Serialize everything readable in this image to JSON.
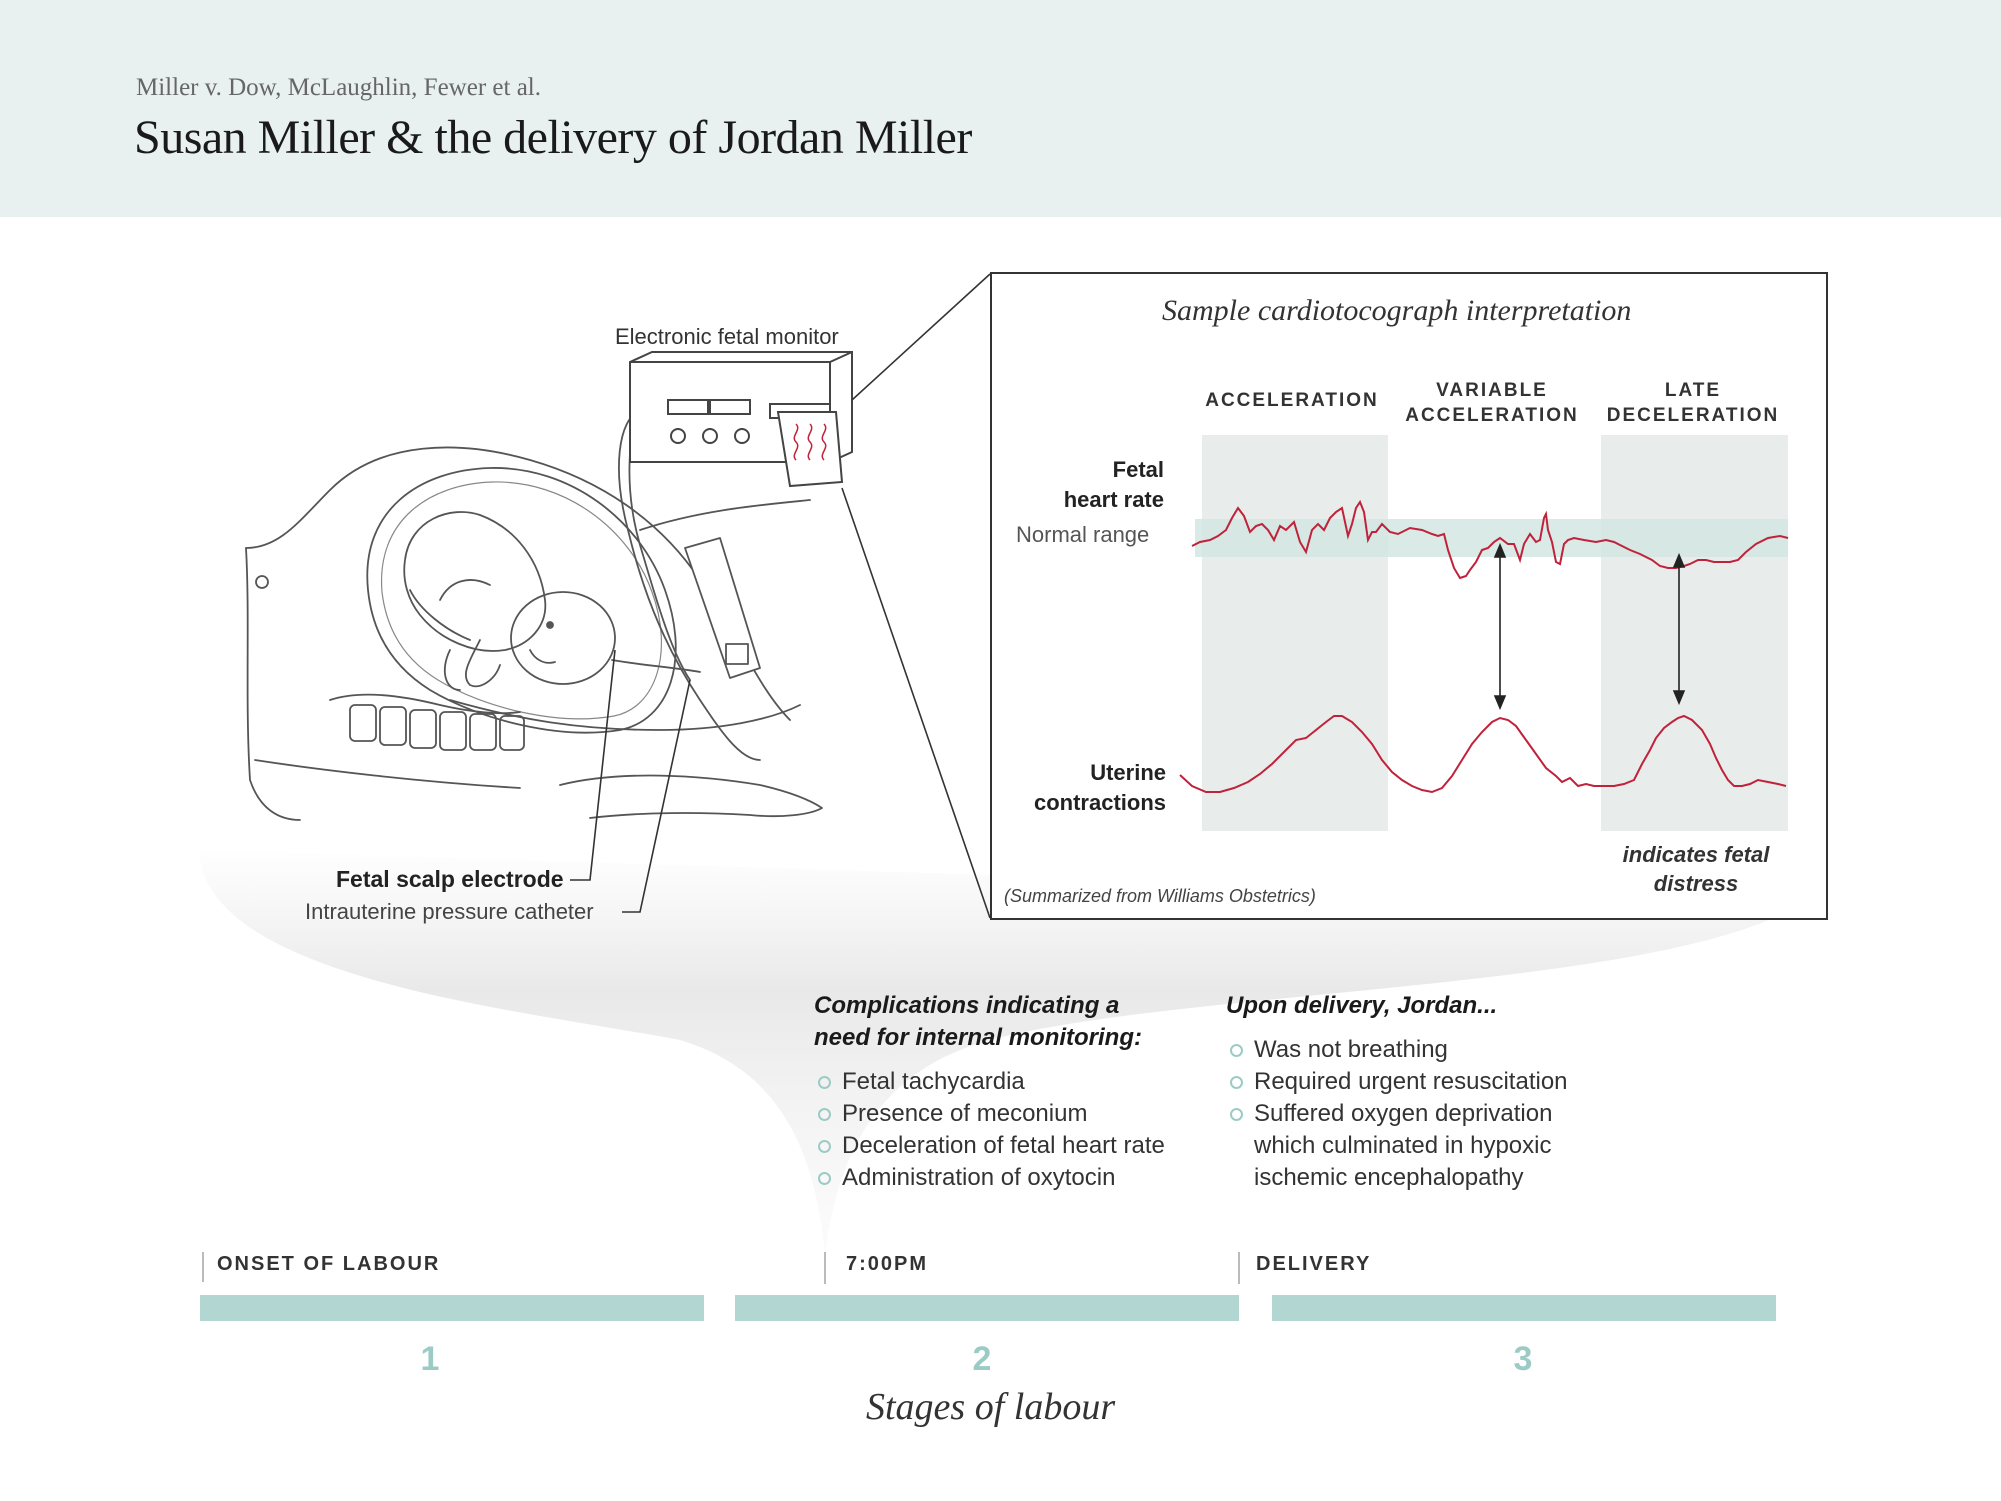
{
  "header": {
    "case": "Miller v. Dow, McLaughlin, Fewer et al.",
    "title": "Susan Miller & the delivery of Jordan Miller"
  },
  "illustration": {
    "monitor_label": "Electronic fetal monitor",
    "scalp_electrode": "Fetal scalp electrode",
    "pressure_catheter": "Intrauterine pressure catheter"
  },
  "ctg": {
    "title": "Sample cardiotocograph interpretation",
    "phases": [
      {
        "line1": "",
        "line2": "ACCELERATION"
      },
      {
        "line1": "VARIABLE",
        "line2": "ACCELERATION"
      },
      {
        "line1": "LATE",
        "line2": "DECELERATION"
      }
    ],
    "fhr_label": [
      "Fetal",
      "heart rate"
    ],
    "normal_range": "Normal range",
    "uc_label": [
      "Uterine",
      "contractions"
    ],
    "distress_note": [
      "indicates fetal",
      "distress"
    ],
    "source": "(Summarized from Williams Obstetrics)",
    "colors": {
      "trace": "#c0223b",
      "band": "#d4e6e3",
      "shade": "#e8ecea"
    }
  },
  "complications": {
    "heading": [
      "Complications indicating a",
      "need for internal monitoring:"
    ],
    "items": [
      "Fetal tachycardia",
      "Presence of meconium",
      "Deceleration of fetal heart rate",
      "Administration of oxytocin"
    ]
  },
  "delivery": {
    "heading": "Upon delivery, Jordan...",
    "items": [
      [
        "Was not breathing"
      ],
      [
        "Required urgent resuscitation"
      ],
      [
        "Suffered oxygen deprivation",
        "which culminated in hypoxic",
        "ischemic encephalopathy"
      ]
    ]
  },
  "timeline": {
    "markers": [
      "ONSET OF LABOUR",
      "7:00PM",
      "DELIVERY"
    ],
    "stages": [
      "1",
      "2",
      "3"
    ],
    "caption": "Stages of labour",
    "colors": {
      "bar": "#b2d6d2",
      "number": "#9ccbc6"
    }
  }
}
